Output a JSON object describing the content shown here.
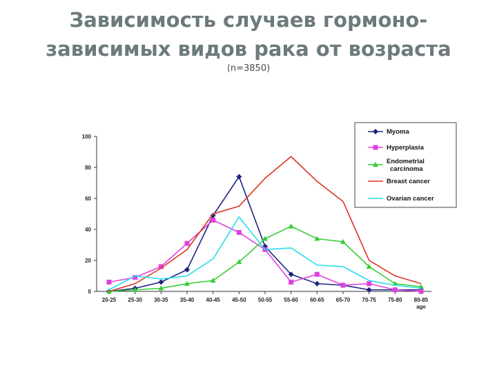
{
  "slide": {
    "title_line1": "Зависимость случаев гормоно-",
    "title_line2": "зависимых видов рака от возраста",
    "subtitle": "(n=3850)"
  },
  "chart_data": {
    "type": "line",
    "title": "",
    "xlabel": "age",
    "ylabel": "",
    "categories": [
      "20-25",
      "25-30",
      "30-35",
      "35-40",
      "40-45",
      "45-50",
      "50-55",
      "55-60",
      "60-65",
      "65-70",
      "70-75",
      "75-80",
      "80-85"
    ],
    "ylim": [
      0,
      100
    ],
    "yticks": [
      0,
      20,
      40,
      60,
      80,
      100
    ],
    "grid": false,
    "legend_position": "top-right",
    "series": [
      {
        "name": "Myoma",
        "color": "#1a237e",
        "marker": "diamond",
        "values": [
          0,
          2,
          6,
          14,
          49,
          74,
          29,
          11,
          5,
          4,
          1,
          1,
          1
        ]
      },
      {
        "name": "Hyperplasia",
        "color": "#e040e0",
        "marker": "square",
        "values": [
          6,
          9,
          16,
          31,
          46,
          38,
          27,
          6,
          11,
          4,
          5,
          1,
          0
        ]
      },
      {
        "name": "Endometrial carcinoma",
        "color": "#33cc33",
        "marker": "triangle",
        "values": [
          0,
          1,
          2,
          5,
          7,
          19,
          34,
          42,
          34,
          32,
          16,
          5,
          3
        ]
      },
      {
        "name": "Breast cancer",
        "color": "#dd3322",
        "marker": "none",
        "values": [
          0,
          5,
          15,
          27,
          50,
          55,
          73,
          87,
          71,
          58,
          20,
          10,
          5
        ]
      },
      {
        "name": "Ovarian cancer",
        "color": "#22ddee",
        "marker": "none",
        "values": [
          1,
          10,
          8,
          10,
          21,
          48,
          27,
          28,
          17,
          16,
          7,
          4,
          2
        ]
      }
    ]
  }
}
